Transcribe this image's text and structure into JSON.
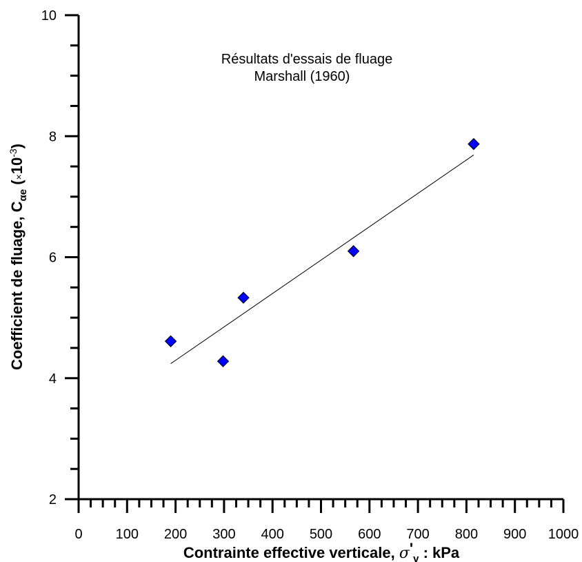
{
  "chart_data": {
    "type": "scatter",
    "title": "Résultats d'essais de fluage",
    "subtitle": "Marshall (1960)",
    "xlabel": {
      "main": "Contrainte effective verticale, ",
      "symbol": "σ",
      "prime": "'",
      "subscript": "v",
      "unit": " : kPa"
    },
    "ylabel": {
      "main": "Coefficient de fluage, C",
      "subscript": "αe",
      "unit_open": " (",
      "multiplier": "×",
      "unit_base": "10",
      "unit_exp": "-3",
      "unit_close": ")"
    },
    "xlim": [
      0,
      1000
    ],
    "ylim": [
      2,
      10
    ],
    "x_ticks": [
      "0",
      "100",
      "200",
      "300",
      "400",
      "500",
      "600",
      "700",
      "800",
      "900",
      "1000"
    ],
    "y_ticks": [
      "2",
      "4",
      "6",
      "8",
      "10"
    ],
    "grid": false,
    "series": [
      {
        "marker": "diamond",
        "color": "#0000ff",
        "points": [
          {
            "x": 190,
            "y": 4.61
          },
          {
            "x": 298,
            "y": 4.28
          },
          {
            "x": 340,
            "y": 5.33
          },
          {
            "x": 567,
            "y": 6.1
          },
          {
            "x": 815,
            "y": 7.87
          }
        ]
      }
    ],
    "trendline": {
      "color": "#000000",
      "points": [
        {
          "x": 190,
          "y": 4.24
        },
        {
          "x": 815,
          "y": 7.69
        }
      ]
    }
  }
}
